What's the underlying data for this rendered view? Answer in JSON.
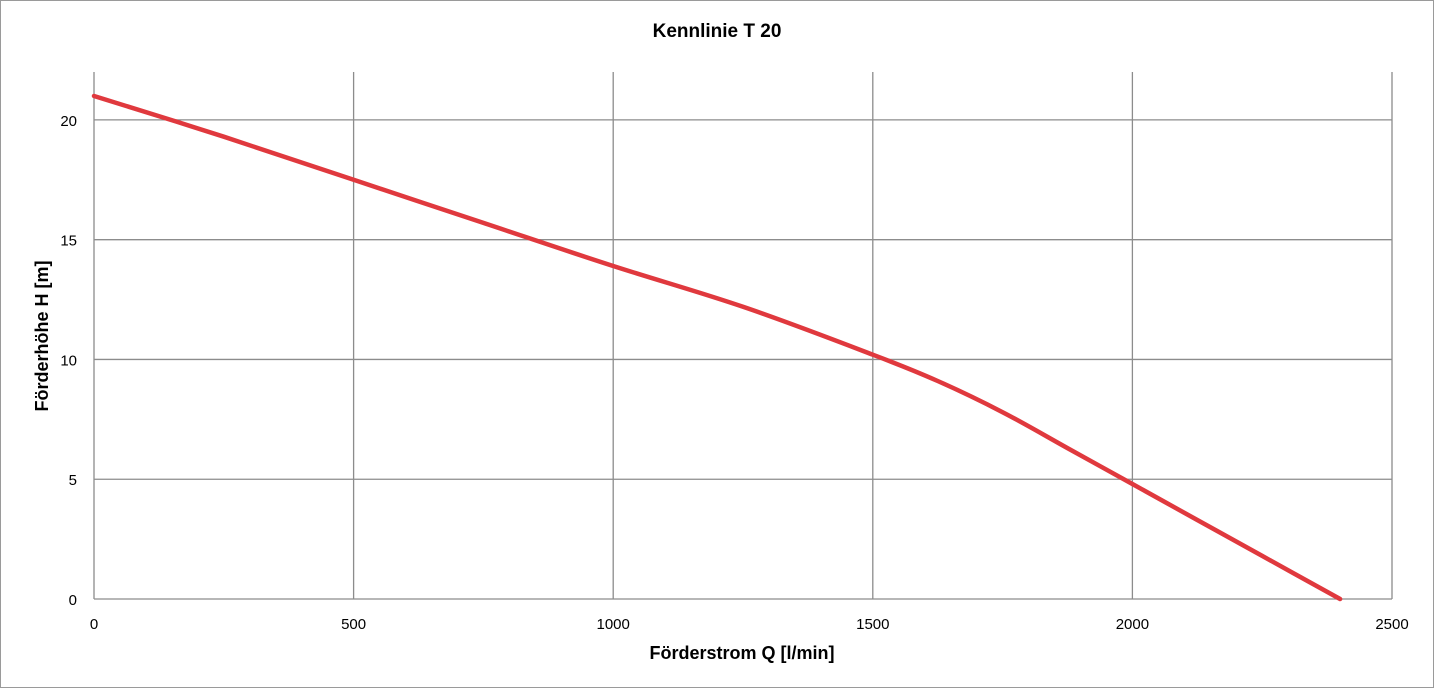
{
  "chart_data": {
    "type": "line",
    "title": "Kennlinie T 20",
    "xlabel": "Förderstrom Q [l/min]",
    "ylabel": "Förderhöhe H [m]",
    "xlim": [
      0,
      2500
    ],
    "ylim": [
      0,
      22
    ],
    "x_ticks": [
      0,
      500,
      1000,
      1500,
      2000,
      2500
    ],
    "y_ticks": [
      0,
      5,
      10,
      15,
      20
    ],
    "grid": true,
    "legend": "none",
    "series": [
      {
        "color": "#e0393e",
        "points": [
          [
            0,
            21.0
          ],
          [
            250,
            19.3
          ],
          [
            500,
            17.5
          ],
          [
            750,
            15.7
          ],
          [
            1000,
            13.9
          ],
          [
            1250,
            12.2
          ],
          [
            1500,
            10.2
          ],
          [
            1625,
            9.1
          ],
          [
            1750,
            7.8
          ],
          [
            1875,
            6.3
          ],
          [
            2000,
            4.8
          ],
          [
            2125,
            3.3
          ],
          [
            2250,
            1.8
          ],
          [
            2400,
            0.0
          ]
        ]
      }
    ]
  }
}
